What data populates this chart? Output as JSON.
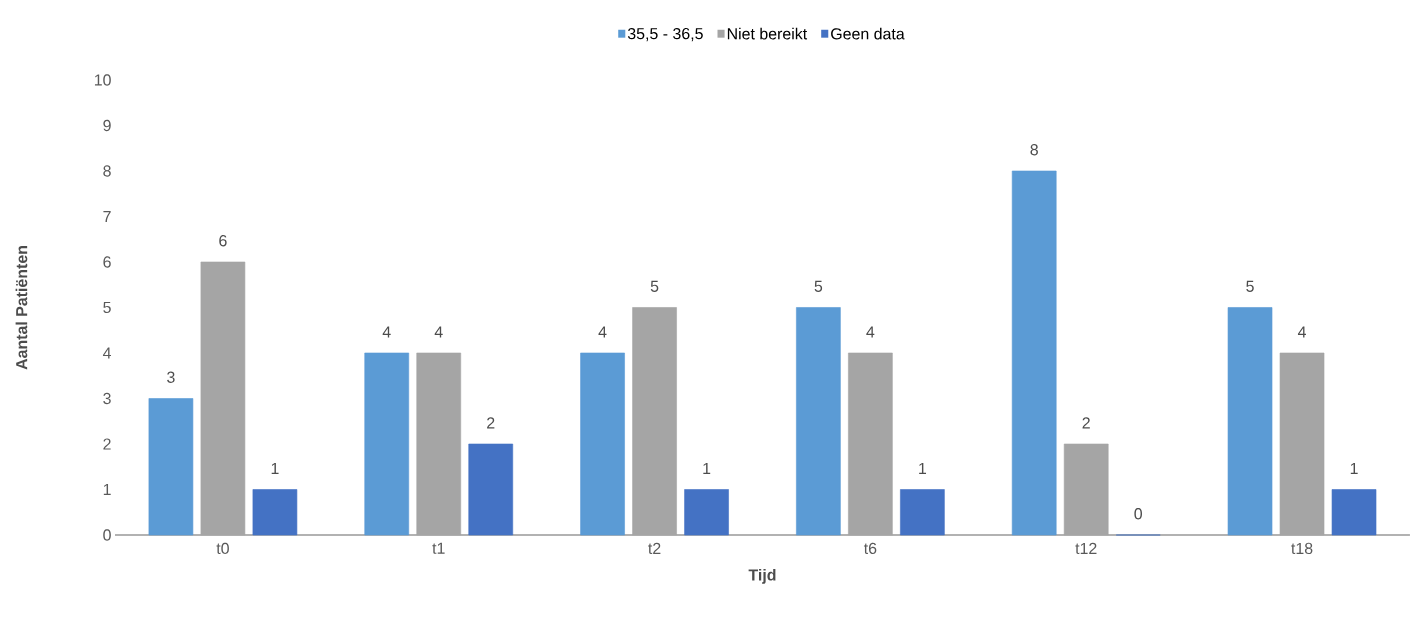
{
  "chart_data": {
    "type": "bar",
    "xlabel": "Tijd",
    "ylabel": "Aantal Patiënten",
    "categories": [
      "t0",
      "t1",
      "t2",
      "t6",
      "t12",
      "t18"
    ],
    "series": [
      {
        "name": "35,5 - 36,5",
        "color": "#5b9bd5",
        "values": [
          3,
          4,
          4,
          5,
          8,
          5
        ]
      },
      {
        "name": "Niet bereikt",
        "color": "#a5a5a5",
        "values": [
          6,
          4,
          5,
          4,
          2,
          4
        ]
      },
      {
        "name": "Geen data",
        "color": "#4472c4",
        "values": [
          1,
          2,
          1,
          1,
          0,
          1
        ]
      }
    ],
    "ylim": [
      0,
      10
    ],
    "yticks": [
      0,
      1,
      2,
      3,
      4,
      5,
      6,
      7,
      8,
      9,
      10
    ],
    "data_labels": true,
    "legend": "top"
  }
}
